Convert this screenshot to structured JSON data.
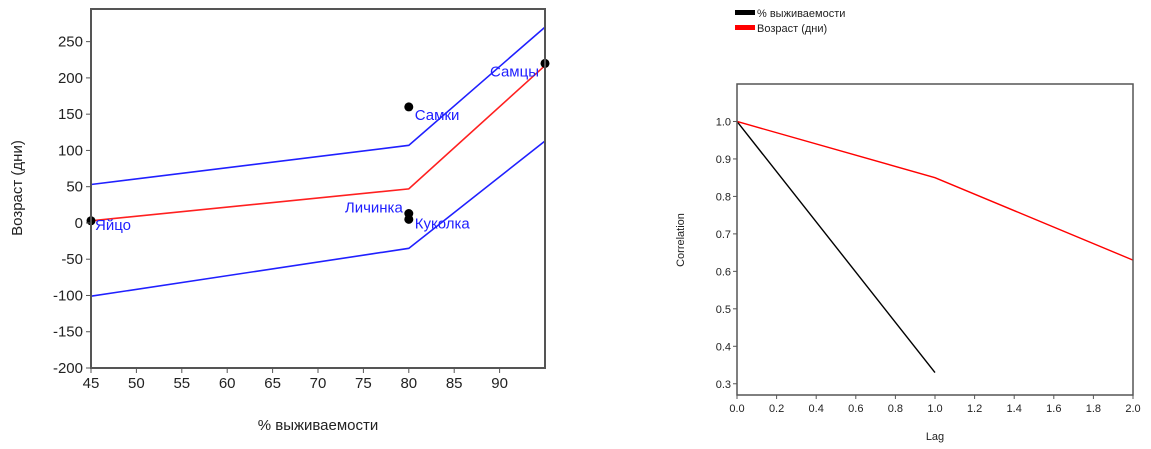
{
  "chart_data": [
    {
      "type": "scatter",
      "xlabel": "% выживаемости",
      "ylabel": "Возраст (дни)",
      "xlim": [
        45,
        95
      ],
      "ylim": [
        -200,
        295
      ],
      "xticks": [
        45,
        50,
        55,
        60,
        65,
        70,
        75,
        80,
        85,
        90
      ],
      "yticks": [
        -200,
        -150,
        -100,
        -50,
        0,
        50,
        100,
        150,
        200,
        250
      ],
      "points": [
        {
          "label": "Яйцо",
          "x": 45,
          "y": 3
        },
        {
          "label": "Самки",
          "x": 80,
          "y": 160
        },
        {
          "label": "Личинка",
          "x": 80,
          "y": 13
        },
        {
          "label": "Куколка",
          "x": 80,
          "y": 5
        },
        {
          "label": "Самцы",
          "x": 95,
          "y": 220
        }
      ],
      "lines": [
        {
          "role": "fit",
          "color": "#ff2020",
          "x": [
            45,
            80,
            95
          ],
          "y": [
            3,
            47,
            217
          ]
        },
        {
          "role": "upper",
          "color": "#2020ff",
          "x": [
            45,
            80,
            95
          ],
          "y": [
            53,
            107,
            270
          ]
        },
        {
          "role": "lower",
          "color": "#2020ff",
          "x": [
            45,
            80,
            95
          ],
          "y": [
            -101,
            -35,
            113
          ]
        }
      ],
      "point_color": "#000000",
      "label_color": "#2020ff"
    },
    {
      "type": "line",
      "xlabel": "Lag",
      "ylabel": "Correlation",
      "xlim": [
        0,
        2
      ],
      "ylim": [
        0.27,
        1.1
      ],
      "xticks": [
        "0.0",
        "0.2",
        "0.4",
        "0.6",
        "0.8",
        "1.0",
        "1.2",
        "1.4",
        "1.6",
        "1.8",
        "2.0"
      ],
      "yticks": [
        "0.3",
        "0.4",
        "0.5",
        "0.6",
        "0.7",
        "0.8",
        "0.9",
        "1.0"
      ],
      "legend_position": "top-left",
      "series": [
        {
          "name": "% выживаемости",
          "color": "#000000",
          "x": [
            0,
            1
          ],
          "values": [
            1.0,
            0.33
          ]
        },
        {
          "name": "Возраст (дни)",
          "color": "#ff0000",
          "x": [
            0,
            1,
            2
          ],
          "values": [
            1.0,
            0.85,
            0.63
          ]
        }
      ]
    }
  ]
}
